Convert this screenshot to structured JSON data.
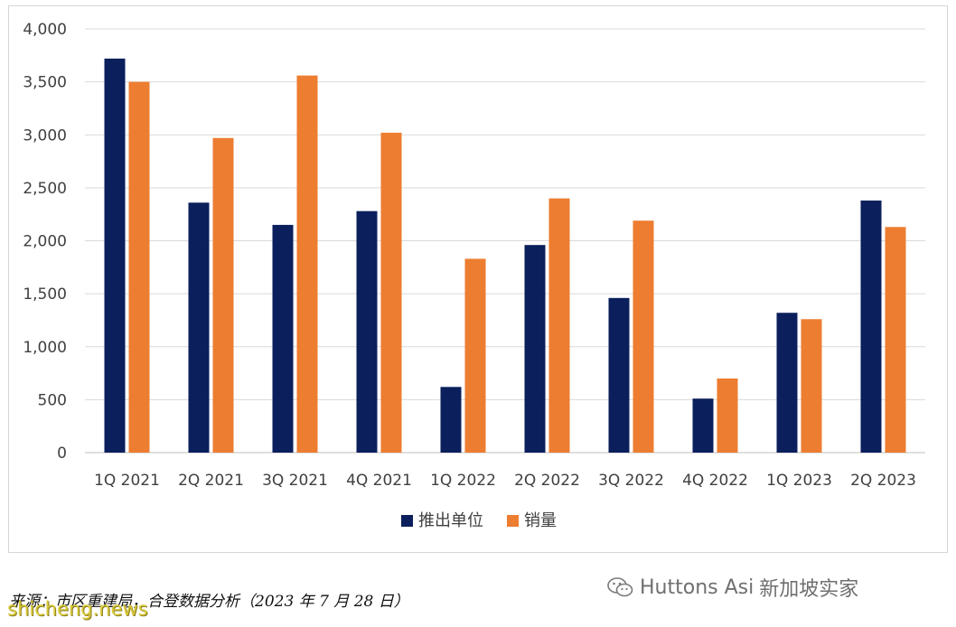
{
  "chart_data": {
    "type": "bar",
    "categories": [
      "1Q 2021",
      "2Q 2021",
      "3Q 2021",
      "4Q 2021",
      "1Q 2022",
      "2Q 2022",
      "3Q 2022",
      "4Q 2022",
      "1Q 2023",
      "2Q 2023"
    ],
    "series": [
      {
        "name": "推出单位",
        "color": "#0a1f5c",
        "values": [
          3720,
          2360,
          2150,
          2280,
          620,
          1960,
          1460,
          510,
          1320,
          2380
        ]
      },
      {
        "name": "销量",
        "color": "#ed7d31",
        "values": [
          3500,
          2970,
          3560,
          3020,
          1830,
          2400,
          2190,
          700,
          1260,
          2130
        ]
      }
    ],
    "y_ticks": [
      "0",
      "500",
      "1,000",
      "1,500",
      "2,000",
      "2,500",
      "3,000",
      "3,500",
      "4,000"
    ],
    "ylim": [
      0,
      4000
    ],
    "grid": true,
    "legend_position": "bottom-center"
  },
  "footer": {
    "source": "来源：市区重建局，合登数据分析（2023 年 7 月 28 日）",
    "brand": "Huttons Asi",
    "brand_cn": "新加坡实家",
    "site": "shicheng.news"
  }
}
